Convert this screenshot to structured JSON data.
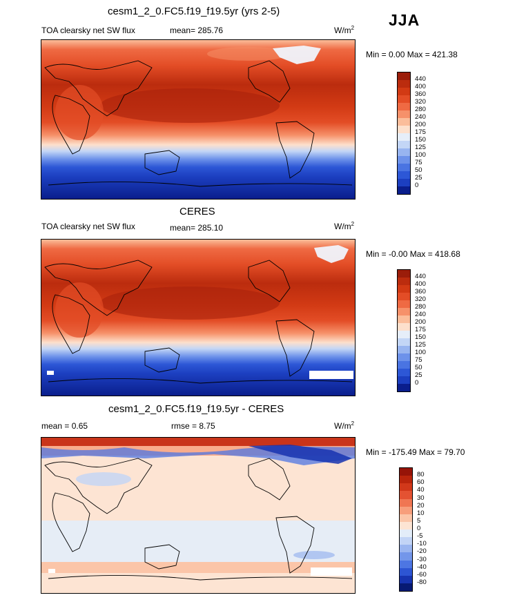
{
  "season": "JJA",
  "colors": {
    "abs_scale": [
      "#0a1e8c",
      "#1c3fc0",
      "#2d57d6",
      "#4a74e2",
      "#6d92ea",
      "#98b5f0",
      "#c3d6f6",
      "#e6eef9",
      "#fde0cc",
      "#fbbd9a",
      "#f6916a",
      "#ef6a43",
      "#e34d26",
      "#d23a14",
      "#bb2c0e",
      "#9b1d0a"
    ],
    "diff_scale": [
      "#071a73",
      "#1734b0",
      "#2d55d3",
      "#4d76e3",
      "#7396ea",
      "#9ab5f0",
      "#c2d4f6",
      "#e3edf9",
      "#fde4d3",
      "#fbc5a8",
      "#f79e7b",
      "#f07652",
      "#e45232",
      "#d1381a",
      "#b9250c",
      "#961408"
    ]
  },
  "panels": [
    {
      "id": "model",
      "title": "cesm1_2_0.FC5.f19_f19.5yr (yrs 2-5)",
      "left_label": "TOA clearsky net SW flux",
      "stat_label": "mean= 285.76",
      "unit": "W/m",
      "unit_sup": "2",
      "minmax": "Min =   0.00 Max = 421.38",
      "ticks": [
        "440",
        "400",
        "360",
        "320",
        "280",
        "240",
        "200",
        "175",
        "150",
        "125",
        "100",
        "75",
        "50",
        "25",
        "0"
      ]
    },
    {
      "id": "obs",
      "title": "CERES",
      "left_label": "TOA clearsky net SW flux",
      "stat_label": "mean= 285.10",
      "unit": "W/m",
      "unit_sup": "2",
      "minmax": "Min =  -0.00 Max = 418.68",
      "ticks": [
        "440",
        "400",
        "360",
        "320",
        "280",
        "240",
        "200",
        "175",
        "150",
        "125",
        "100",
        "75",
        "50",
        "25",
        "0"
      ]
    },
    {
      "id": "diff",
      "title": "cesm1_2_0.FC5.f19_f19.5yr - CERES",
      "left_label": "mean =   0.65",
      "stat_label": "rmse =   8.75",
      "unit": "W/m",
      "unit_sup": "2",
      "minmax": "Min = -175.49 Max =  79.70",
      "ticks": [
        "80",
        "60",
        "40",
        "30",
        "20",
        "10",
        "5",
        "0",
        "-5",
        "-10",
        "-20",
        "-30",
        "-40",
        "-60",
        "-80"
      ]
    }
  ],
  "chart_data": [
    {
      "type": "heatmap",
      "title": "cesm1_2_0.FC5.f19_f19.5yr (yrs 2-5)",
      "subtitle": "TOA clearsky net SW flux",
      "units": "W/m2",
      "mean": 285.76,
      "min": 0.0,
      "max": 421.38,
      "colorbar_levels": [
        0,
        25,
        50,
        75,
        100,
        125,
        150,
        175,
        200,
        240,
        280,
        320,
        360,
        400,
        440
      ],
      "latitude_bands_approx": [
        {
          "lat": 80,
          "value": 240
        },
        {
          "lat": 60,
          "value": 330
        },
        {
          "lat": 40,
          "value": 385
        },
        {
          "lat": 20,
          "value": 400
        },
        {
          "lat": 0,
          "value": 350
        },
        {
          "lat": -20,
          "value": 270
        },
        {
          "lat": -40,
          "value": 160
        },
        {
          "lat": -60,
          "value": 40
        },
        {
          "lat": -80,
          "value": 0
        }
      ]
    },
    {
      "type": "heatmap",
      "title": "CERES",
      "subtitle": "TOA clearsky net SW flux",
      "units": "W/m2",
      "mean": 285.1,
      "min": -0.0,
      "max": 418.68,
      "colorbar_levels": [
        0,
        25,
        50,
        75,
        100,
        125,
        150,
        175,
        200,
        240,
        280,
        320,
        360,
        400,
        440
      ],
      "latitude_bands_approx": [
        {
          "lat": 80,
          "value": 240
        },
        {
          "lat": 60,
          "value": 330
        },
        {
          "lat": 40,
          "value": 385
        },
        {
          "lat": 20,
          "value": 395
        },
        {
          "lat": 0,
          "value": 350
        },
        {
          "lat": -20,
          "value": 270
        },
        {
          "lat": -40,
          "value": 160
        },
        {
          "lat": -60,
          "value": 40
        },
        {
          "lat": -80,
          "value": 0
        }
      ]
    },
    {
      "type": "heatmap",
      "title": "cesm1_2_0.FC5.f19_f19.5yr - CERES",
      "units": "W/m2",
      "mean": 0.65,
      "rmse": 8.75,
      "min": -175.49,
      "max": 79.7,
      "colorbar_levels": [
        -80,
        -60,
        -40,
        -30,
        -20,
        -10,
        -5,
        0,
        5,
        10,
        20,
        30,
        40,
        60,
        80
      ]
    }
  ]
}
